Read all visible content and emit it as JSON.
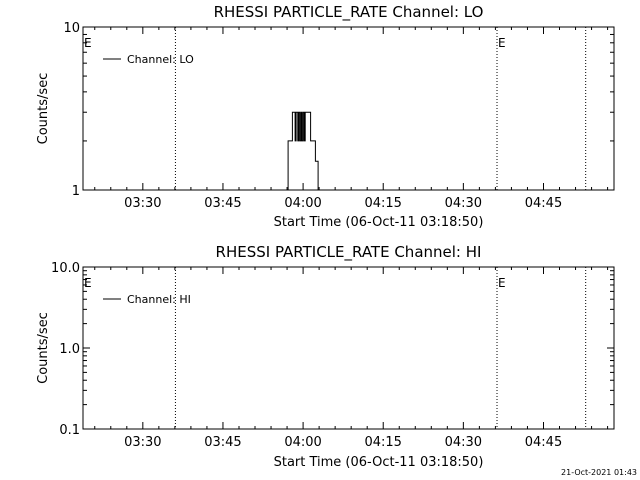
{
  "footer_timestamp": "21-Oct-2021 01:43",
  "chart_data": [
    {
      "type": "line",
      "title": "RHESSI PARTICLE_RATE Channel: LO",
      "xlabel": "Start Time (06-Oct-11 03:18:50)",
      "ylabel": "Counts/sec",
      "x_tick_labels": [
        "03:30",
        "03:45",
        "04:00",
        "04:15",
        "04:30",
        "04:45"
      ],
      "x_tick_minutes": [
        210,
        225,
        240,
        255,
        270,
        285
      ],
      "xlim": [
        198.8,
        298.2
      ],
      "y_scale": "log",
      "ylim": [
        1,
        10
      ],
      "y_tick_labels": [
        "1",
        "10"
      ],
      "y_tick_values": [
        1,
        10
      ],
      "legend": {
        "placement": "top-left",
        "entries": [
          "Channel: LO"
        ]
      },
      "grid": false,
      "marker_label": "E",
      "vertical_markers_minutes": [
        198.8,
        216.1,
        276.3,
        292.9
      ],
      "labeled_markers_minutes": [
        198.8,
        276.3
      ],
      "series": [
        {
          "name": "Channel: LO",
          "x": [
            236.7,
            237.2,
            237.2,
            238.0,
            238.0,
            238.5,
            238.5,
            238.7,
            238.7,
            239.0,
            239.0,
            239.2,
            239.2,
            239.4,
            239.4,
            239.6,
            239.6,
            239.8,
            239.8,
            240.0,
            240.0,
            240.2,
            240.2,
            240.4,
            240.4,
            241.4,
            241.4,
            241.8,
            241.8,
            242.3,
            242.3,
            242.8,
            242.8,
            243.3
          ],
          "y": [
            1,
            1,
            2,
            2,
            3,
            3,
            2,
            2,
            3,
            3,
            2,
            2,
            3,
            3,
            2,
            2,
            3,
            3,
            2,
            2,
            3,
            3,
            2,
            2,
            3,
            3,
            2,
            2,
            2,
            2,
            1.5,
            1.5,
            1,
            1
          ]
        }
      ]
    },
    {
      "type": "line",
      "title": "RHESSI PARTICLE_RATE Channel: HI",
      "xlabel": "Start Time (06-Oct-11 03:18:50)",
      "ylabel": "Counts/sec",
      "x_tick_labels": [
        "03:30",
        "03:45",
        "04:00",
        "04:15",
        "04:30",
        "04:45"
      ],
      "x_tick_minutes": [
        210,
        225,
        240,
        255,
        270,
        285
      ],
      "xlim": [
        198.8,
        298.2
      ],
      "y_scale": "log",
      "ylim": [
        0.1,
        10
      ],
      "y_tick_labels": [
        "0.1",
        "1.0",
        "10.0"
      ],
      "y_tick_values": [
        0.1,
        1,
        10
      ],
      "legend": {
        "placement": "top-left",
        "entries": [
          "Channel: HI"
        ]
      },
      "grid": false,
      "marker_label": "E",
      "vertical_markers_minutes": [
        198.8,
        216.1,
        276.3,
        292.9
      ],
      "labeled_markers_minutes": [
        198.8,
        276.3
      ],
      "series": [
        {
          "name": "Channel: HI",
          "x": [],
          "y": []
        }
      ]
    }
  ]
}
